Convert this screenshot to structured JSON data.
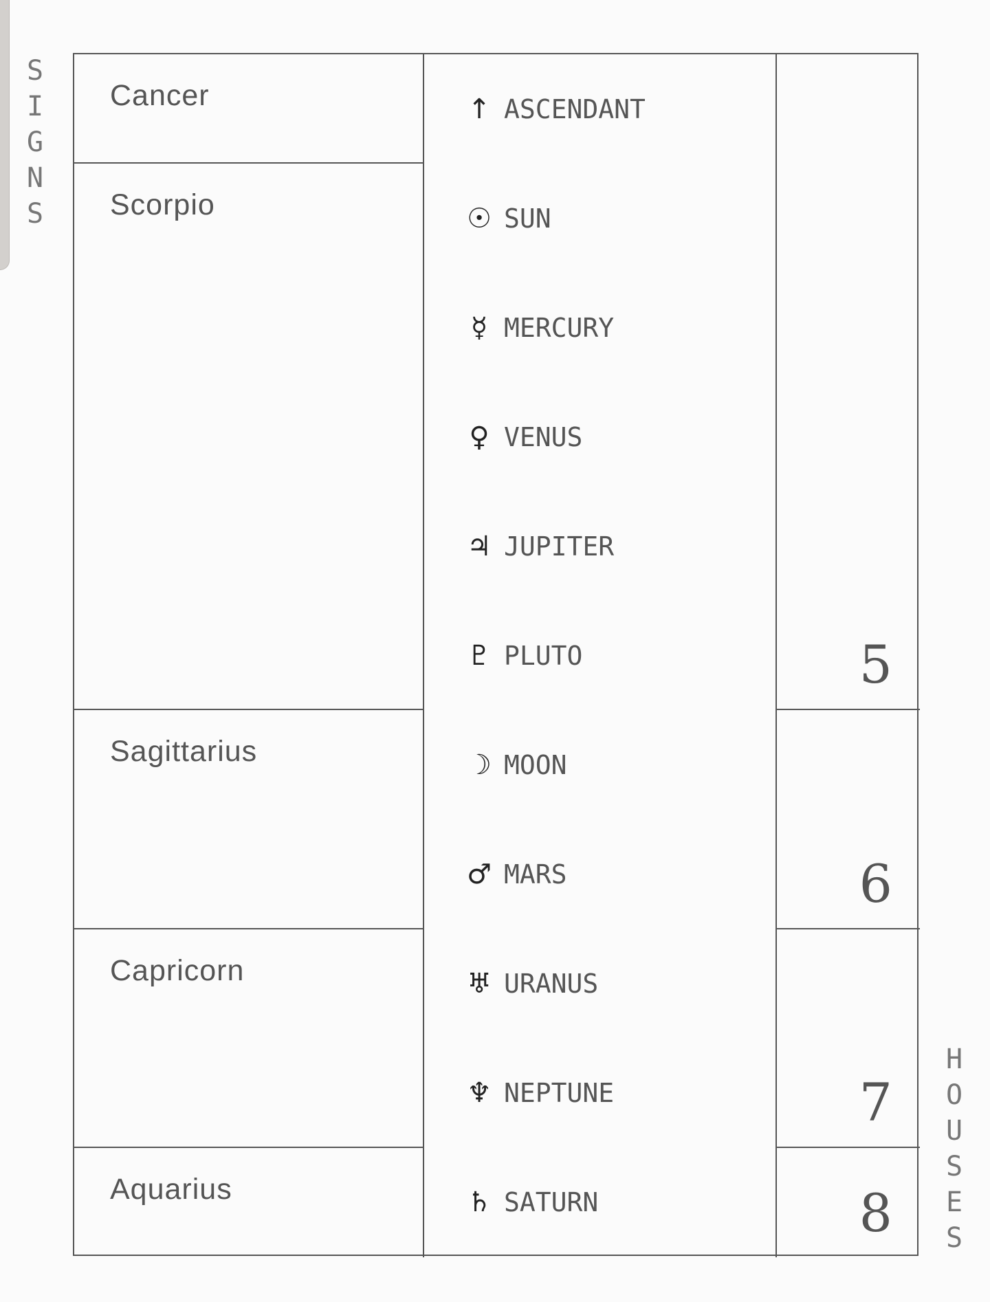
{
  "labels": {
    "signs": [
      "S",
      "I",
      "G",
      "N",
      "S"
    ],
    "houses": [
      "H",
      "O",
      "U",
      "S",
      "E",
      "S"
    ]
  },
  "signs": [
    "Cancer",
    "Scorpio",
    "Sagittarius",
    "Capricorn",
    "Aquarius"
  ],
  "planets": [
    {
      "icon": "ascendant-arrow-icon",
      "glyph": "↑",
      "label": "ASCENDANT"
    },
    {
      "icon": "sun-icon",
      "glyph": "☉",
      "label": "SUN"
    },
    {
      "icon": "mercury-icon",
      "glyph": "☿",
      "label": "MERCURY"
    },
    {
      "icon": "venus-icon",
      "glyph": "♀",
      "label": "VENUS"
    },
    {
      "icon": "jupiter-icon",
      "glyph": "♃",
      "label": "JUPITER"
    },
    {
      "icon": "pluto-icon",
      "glyph": "♇",
      "label": "PLUTO"
    },
    {
      "icon": "moon-icon",
      "glyph": "☽",
      "label": "MOON"
    },
    {
      "icon": "mars-icon",
      "glyph": "♂",
      "label": "MARS"
    },
    {
      "icon": "uranus-icon",
      "glyph": "♅",
      "label": "URANUS"
    },
    {
      "icon": "neptune-icon",
      "glyph": "♆",
      "label": "NEPTUNE"
    },
    {
      "icon": "saturn-icon",
      "glyph": "♄",
      "label": "SATURN"
    }
  ],
  "houses": [
    "5",
    "6",
    "7",
    "8"
  ]
}
